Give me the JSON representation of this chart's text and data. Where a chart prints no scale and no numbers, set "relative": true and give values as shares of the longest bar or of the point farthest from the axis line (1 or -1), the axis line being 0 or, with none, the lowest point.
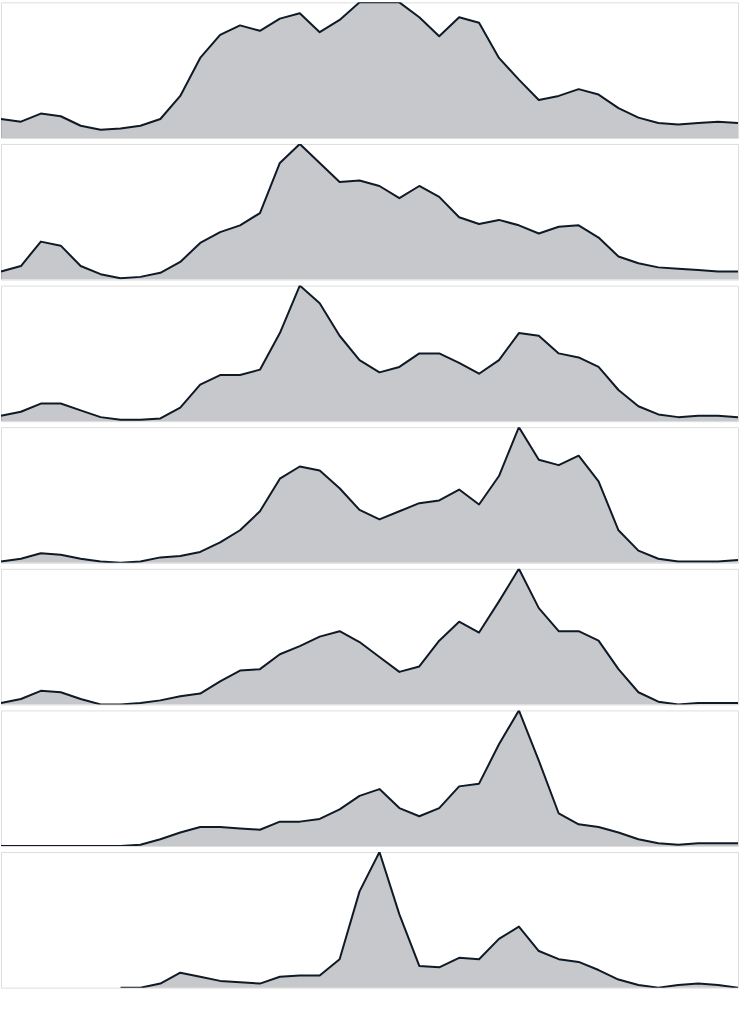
{
  "chart_data": [
    {
      "type": "area",
      "relative": true,
      "color": "#0f1a26",
      "tick_labels": false,
      "categories": [
        null,
        null,
        null,
        null,
        null,
        null,
        null,
        null,
        null,
        null,
        null,
        null,
        null,
        null,
        null,
        null,
        null,
        null,
        null,
        null,
        null,
        null,
        null,
        null,
        null,
        null,
        null,
        null,
        null,
        null,
        null,
        null,
        null,
        null,
        null,
        null,
        null,
        null
      ],
      "values": [
        0.14,
        0.12,
        0.18,
        0.16,
        0.09,
        0.06,
        0.07,
        0.09,
        0.14,
        0.31,
        0.59,
        0.76,
        0.83,
        0.79,
        0.88,
        0.92,
        0.78,
        0.87,
        1.0,
        1.0,
        1.0,
        0.89,
        0.75,
        0.89,
        0.85,
        0.59,
        0.43,
        0.28,
        0.31,
        0.36,
        0.32,
        0.22,
        0.15,
        0.11,
        0.1,
        0.11,
        0.12,
        0.11
      ]
    },
    {
      "type": "area",
      "relative": true,
      "color": "#0f1a26",
      "tick_labels": false,
      "categories": [
        null,
        null,
        null,
        null,
        null,
        null,
        null,
        null,
        null,
        null,
        null,
        null,
        null,
        null,
        null,
        null,
        null,
        null,
        null,
        null,
        null,
        null,
        null,
        null,
        null,
        null,
        null,
        null,
        null,
        null,
        null,
        null,
        null,
        null,
        null,
        null,
        null,
        null
      ],
      "values": [
        0.06,
        0.1,
        0.28,
        0.25,
        0.1,
        0.04,
        0.01,
        0.02,
        0.05,
        0.13,
        0.27,
        0.35,
        0.4,
        0.49,
        0.86,
        1.0,
        0.86,
        0.72,
        0.73,
        0.69,
        0.6,
        0.69,
        0.61,
        0.46,
        0.41,
        0.44,
        0.4,
        0.34,
        0.39,
        0.4,
        0.31,
        0.17,
        0.12,
        0.09,
        0.08,
        0.07,
        0.06,
        0.06
      ]
    },
    {
      "type": "area",
      "relative": true,
      "color": "#0f1a26",
      "tick_labels": false,
      "categories": [
        null,
        null,
        null,
        null,
        null,
        null,
        null,
        null,
        null,
        null,
        null,
        null,
        null,
        null,
        null,
        null,
        null,
        null,
        null,
        null,
        null,
        null,
        null,
        null,
        null,
        null,
        null,
        null,
        null,
        null,
        null,
        null,
        null,
        null,
        null,
        null,
        null,
        null
      ],
      "values": [
        0.04,
        0.07,
        0.13,
        0.13,
        0.08,
        0.03,
        0.01,
        0.01,
        0.02,
        0.1,
        0.27,
        0.34,
        0.34,
        0.38,
        0.65,
        1.0,
        0.87,
        0.63,
        0.45,
        0.36,
        0.4,
        0.5,
        0.5,
        0.43,
        0.35,
        0.45,
        0.65,
        0.63,
        0.5,
        0.47,
        0.4,
        0.23,
        0.11,
        0.05,
        0.03,
        0.04,
        0.04,
        0.03
      ]
    },
    {
      "type": "area",
      "relative": true,
      "color": "#0f1a26",
      "tick_labels": false,
      "categories": [
        null,
        null,
        null,
        null,
        null,
        null,
        null,
        null,
        null,
        null,
        null,
        null,
        null,
        null,
        null,
        null,
        null,
        null,
        null,
        null,
        null,
        null,
        null,
        null,
        null,
        null,
        null,
        null,
        null,
        null,
        null,
        null,
        null,
        null,
        null,
        null,
        null,
        null
      ],
      "values": [
        0.01,
        0.03,
        0.07,
        0.06,
        0.03,
        0.01,
        0.0,
        0.01,
        0.04,
        0.05,
        0.08,
        0.15,
        0.24,
        0.38,
        0.62,
        0.71,
        0.68,
        0.55,
        0.39,
        0.32,
        0.38,
        0.44,
        0.46,
        0.54,
        0.43,
        0.64,
        1.0,
        0.76,
        0.72,
        0.79,
        0.6,
        0.24,
        0.09,
        0.03,
        0.01,
        0.01,
        0.01,
        0.02
      ]
    },
    {
      "type": "area",
      "relative": true,
      "color": "#0f1a26",
      "tick_labels": false,
      "categories": [
        null,
        null,
        null,
        null,
        null,
        null,
        null,
        null,
        null,
        null,
        null,
        null,
        null,
        null,
        null,
        null,
        null,
        null,
        null,
        null,
        null,
        null,
        null,
        null,
        null,
        null,
        null,
        null,
        null,
        null,
        null,
        null,
        null,
        null,
        null,
        null,
        null,
        null
      ],
      "values": [
        0.01,
        0.04,
        0.1,
        0.09,
        0.04,
        0.0,
        0.0,
        0.01,
        0.03,
        0.06,
        0.08,
        0.17,
        0.25,
        0.26,
        0.37,
        0.43,
        0.5,
        0.54,
        0.46,
        0.35,
        0.24,
        0.28,
        0.47,
        0.61,
        0.53,
        0.76,
        1.0,
        0.71,
        0.54,
        0.54,
        0.47,
        0.26,
        0.09,
        0.02,
        0.0,
        0.01,
        0.01,
        0.01
      ]
    },
    {
      "type": "area",
      "relative": true,
      "color": "#0f1a26",
      "tick_labels": false,
      "categories": [
        null,
        null,
        null,
        null,
        null,
        null,
        null,
        null,
        null,
        null,
        null,
        null,
        null,
        null,
        null,
        null,
        null,
        null,
        null,
        null,
        null,
        null,
        null,
        null,
        null,
        null,
        null,
        null,
        null,
        null,
        null,
        null,
        null,
        null,
        null,
        null,
        null,
        null
      ],
      "values": [
        0.0,
        0.0,
        0.0,
        0.0,
        0.0,
        0.0,
        0.0,
        0.01,
        0.05,
        0.1,
        0.14,
        0.14,
        0.13,
        0.12,
        0.18,
        0.18,
        0.2,
        0.27,
        0.37,
        0.42,
        0.28,
        0.22,
        0.28,
        0.44,
        0.46,
        0.75,
        1.0,
        0.63,
        0.24,
        0.16,
        0.14,
        0.1,
        0.05,
        0.02,
        0.01,
        0.02,
        0.02,
        0.02
      ]
    },
    {
      "type": "area",
      "relative": true,
      "color": "#0f1a26",
      "tick_labels": false,
      "categories": [
        null,
        null,
        null,
        null,
        null,
        null,
        null,
        null,
        null,
        null,
        null,
        null,
        null,
        null,
        null,
        null,
        null,
        null,
        null,
        null,
        null,
        null,
        null,
        null,
        null,
        null,
        null,
        null,
        null,
        null,
        null,
        null,
        null,
        null,
        null,
        null,
        null,
        null
      ],
      "values": [
        null,
        null,
        null,
        null,
        null,
        null,
        0.0,
        0.0,
        0.03,
        0.11,
        0.08,
        0.05,
        0.04,
        0.03,
        0.08,
        0.09,
        0.09,
        0.21,
        0.71,
        1.0,
        0.54,
        0.16,
        0.15,
        0.22,
        0.21,
        0.36,
        0.45,
        0.27,
        0.21,
        0.19,
        0.13,
        0.06,
        0.02,
        0.0,
        0.02,
        0.03,
        0.02,
        0.0
      ]
    }
  ]
}
